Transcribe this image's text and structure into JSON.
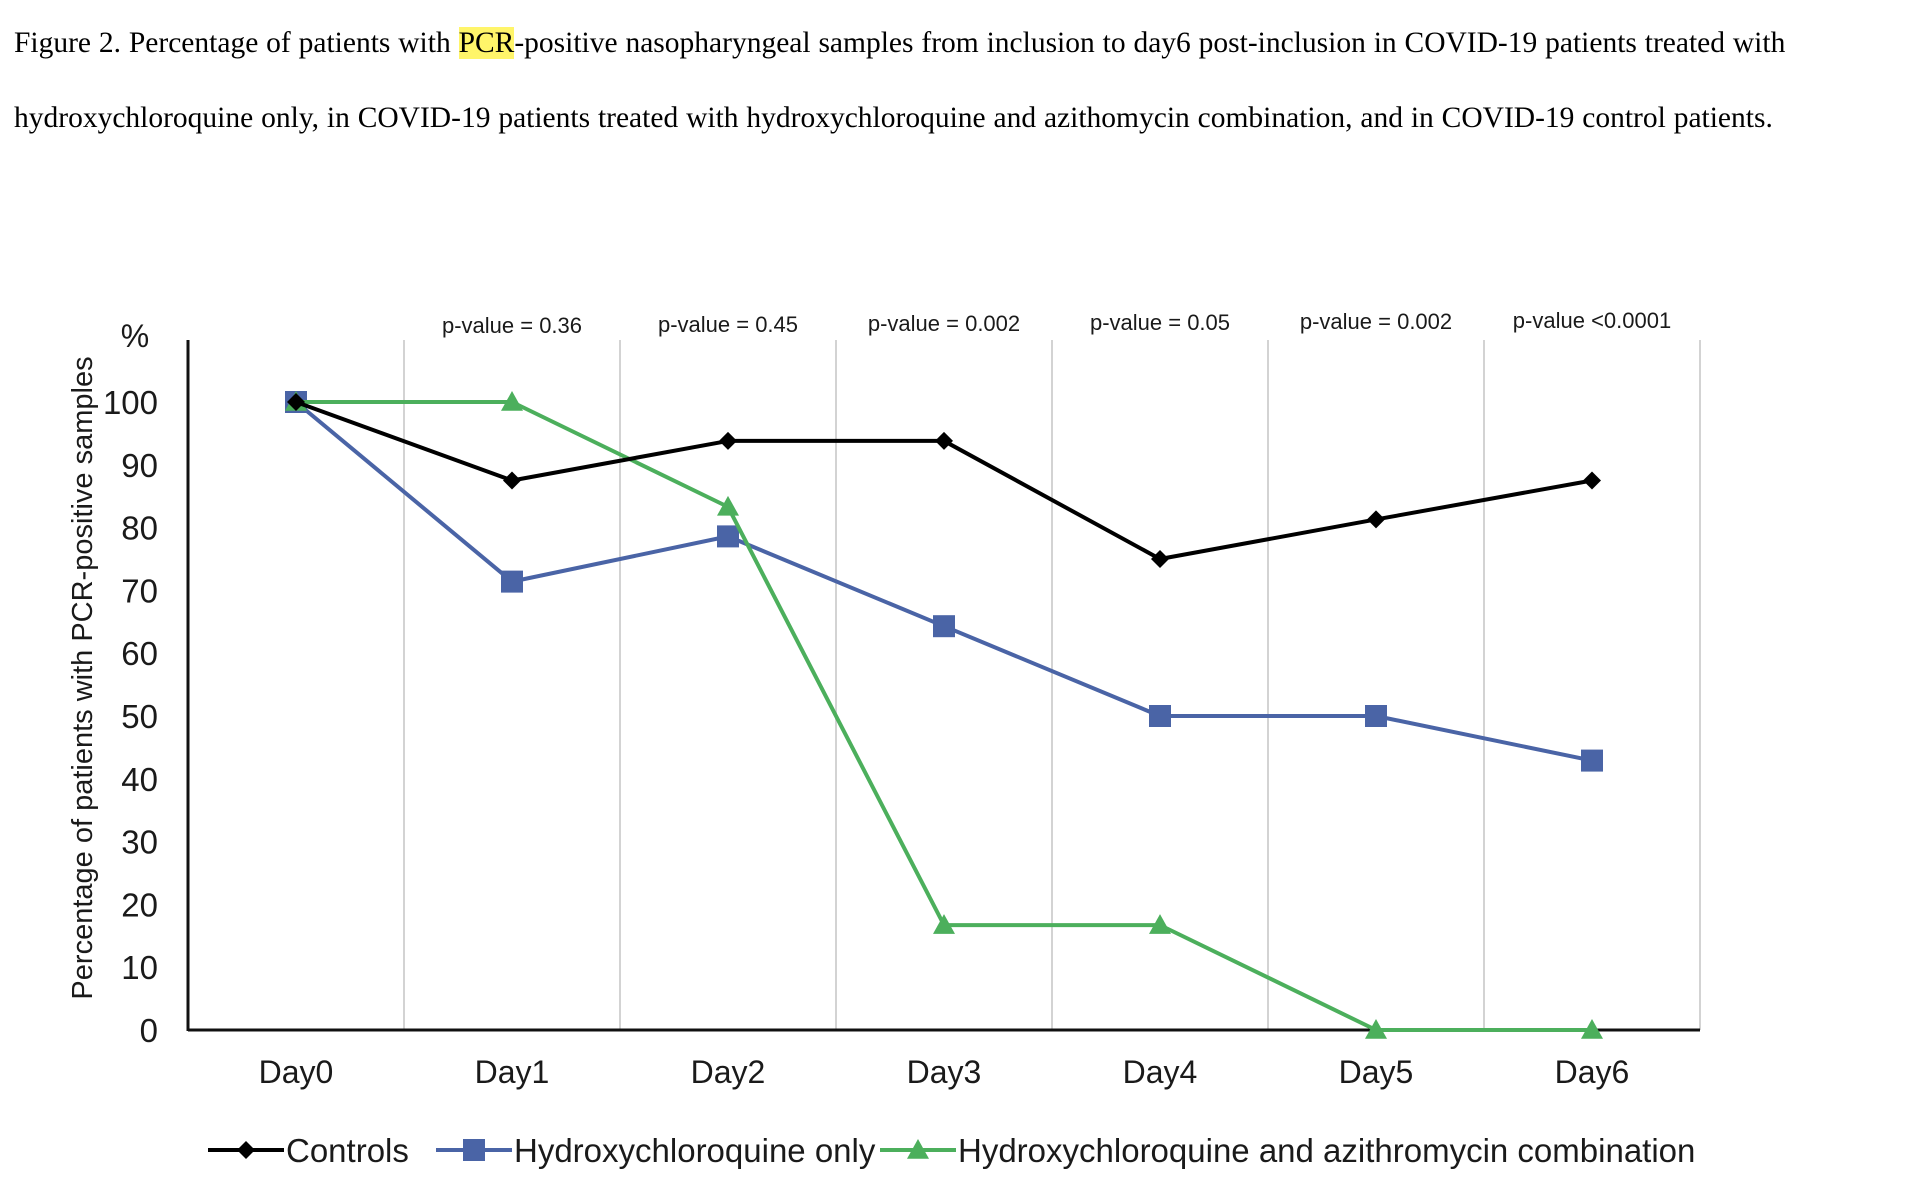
{
  "caption": {
    "lead": "Figure 2. Percentage of patients with ",
    "highlight": "PCR",
    "rest": "-positive nasopharyngeal samples from inclusion to day6 post-inclusion in COVID-19 patients treated with hydroxychloroquine only, in COVID-19 patients treated with hydroxychloroquine and azithomycin combination, and in COVID-19 control patients."
  },
  "colors": {
    "highlight": "#fff56a",
    "controls": "#000000",
    "hydroxychloroquine_only": "#4a64a6",
    "combination": "#4caf5c",
    "gridlines": "#d3d3d3"
  },
  "chart_data": {
    "type": "line",
    "xlabel": "",
    "ylabel": "Percentage of patients with PCR-positive samples",
    "yunit": "%",
    "categories": [
      "Day0",
      "Day1",
      "Day2",
      "Day3",
      "Day4",
      "Day5",
      "Day6"
    ],
    "yticks": [
      0,
      10,
      20,
      30,
      40,
      50,
      60,
      70,
      80,
      90,
      100
    ],
    "ylim": [
      0,
      100
    ],
    "grid": "vertical lines between days",
    "legend": "bottom",
    "series": [
      {
        "name": "Controls",
        "marker": "diamond",
        "values": [
          100,
          87.5,
          93.8,
          93.8,
          75,
          81.3,
          87.5
        ]
      },
      {
        "name": "Hydroxychloroquine only",
        "marker": "square",
        "values": [
          100,
          71.4,
          78.6,
          64.3,
          50,
          50,
          42.9
        ]
      },
      {
        "name": "Hydroxychloroquine and azithromycin combination",
        "marker": "triangle",
        "values": [
          100,
          100,
          83.3,
          16.7,
          16.7,
          0,
          0
        ]
      }
    ],
    "annotations": [
      "p-value = 0.36",
      "p-value = 0.45",
      "p-value = 0.002",
      "p-value = 0.05",
      "p-value = 0.002",
      "p-value <0.0001"
    ]
  }
}
